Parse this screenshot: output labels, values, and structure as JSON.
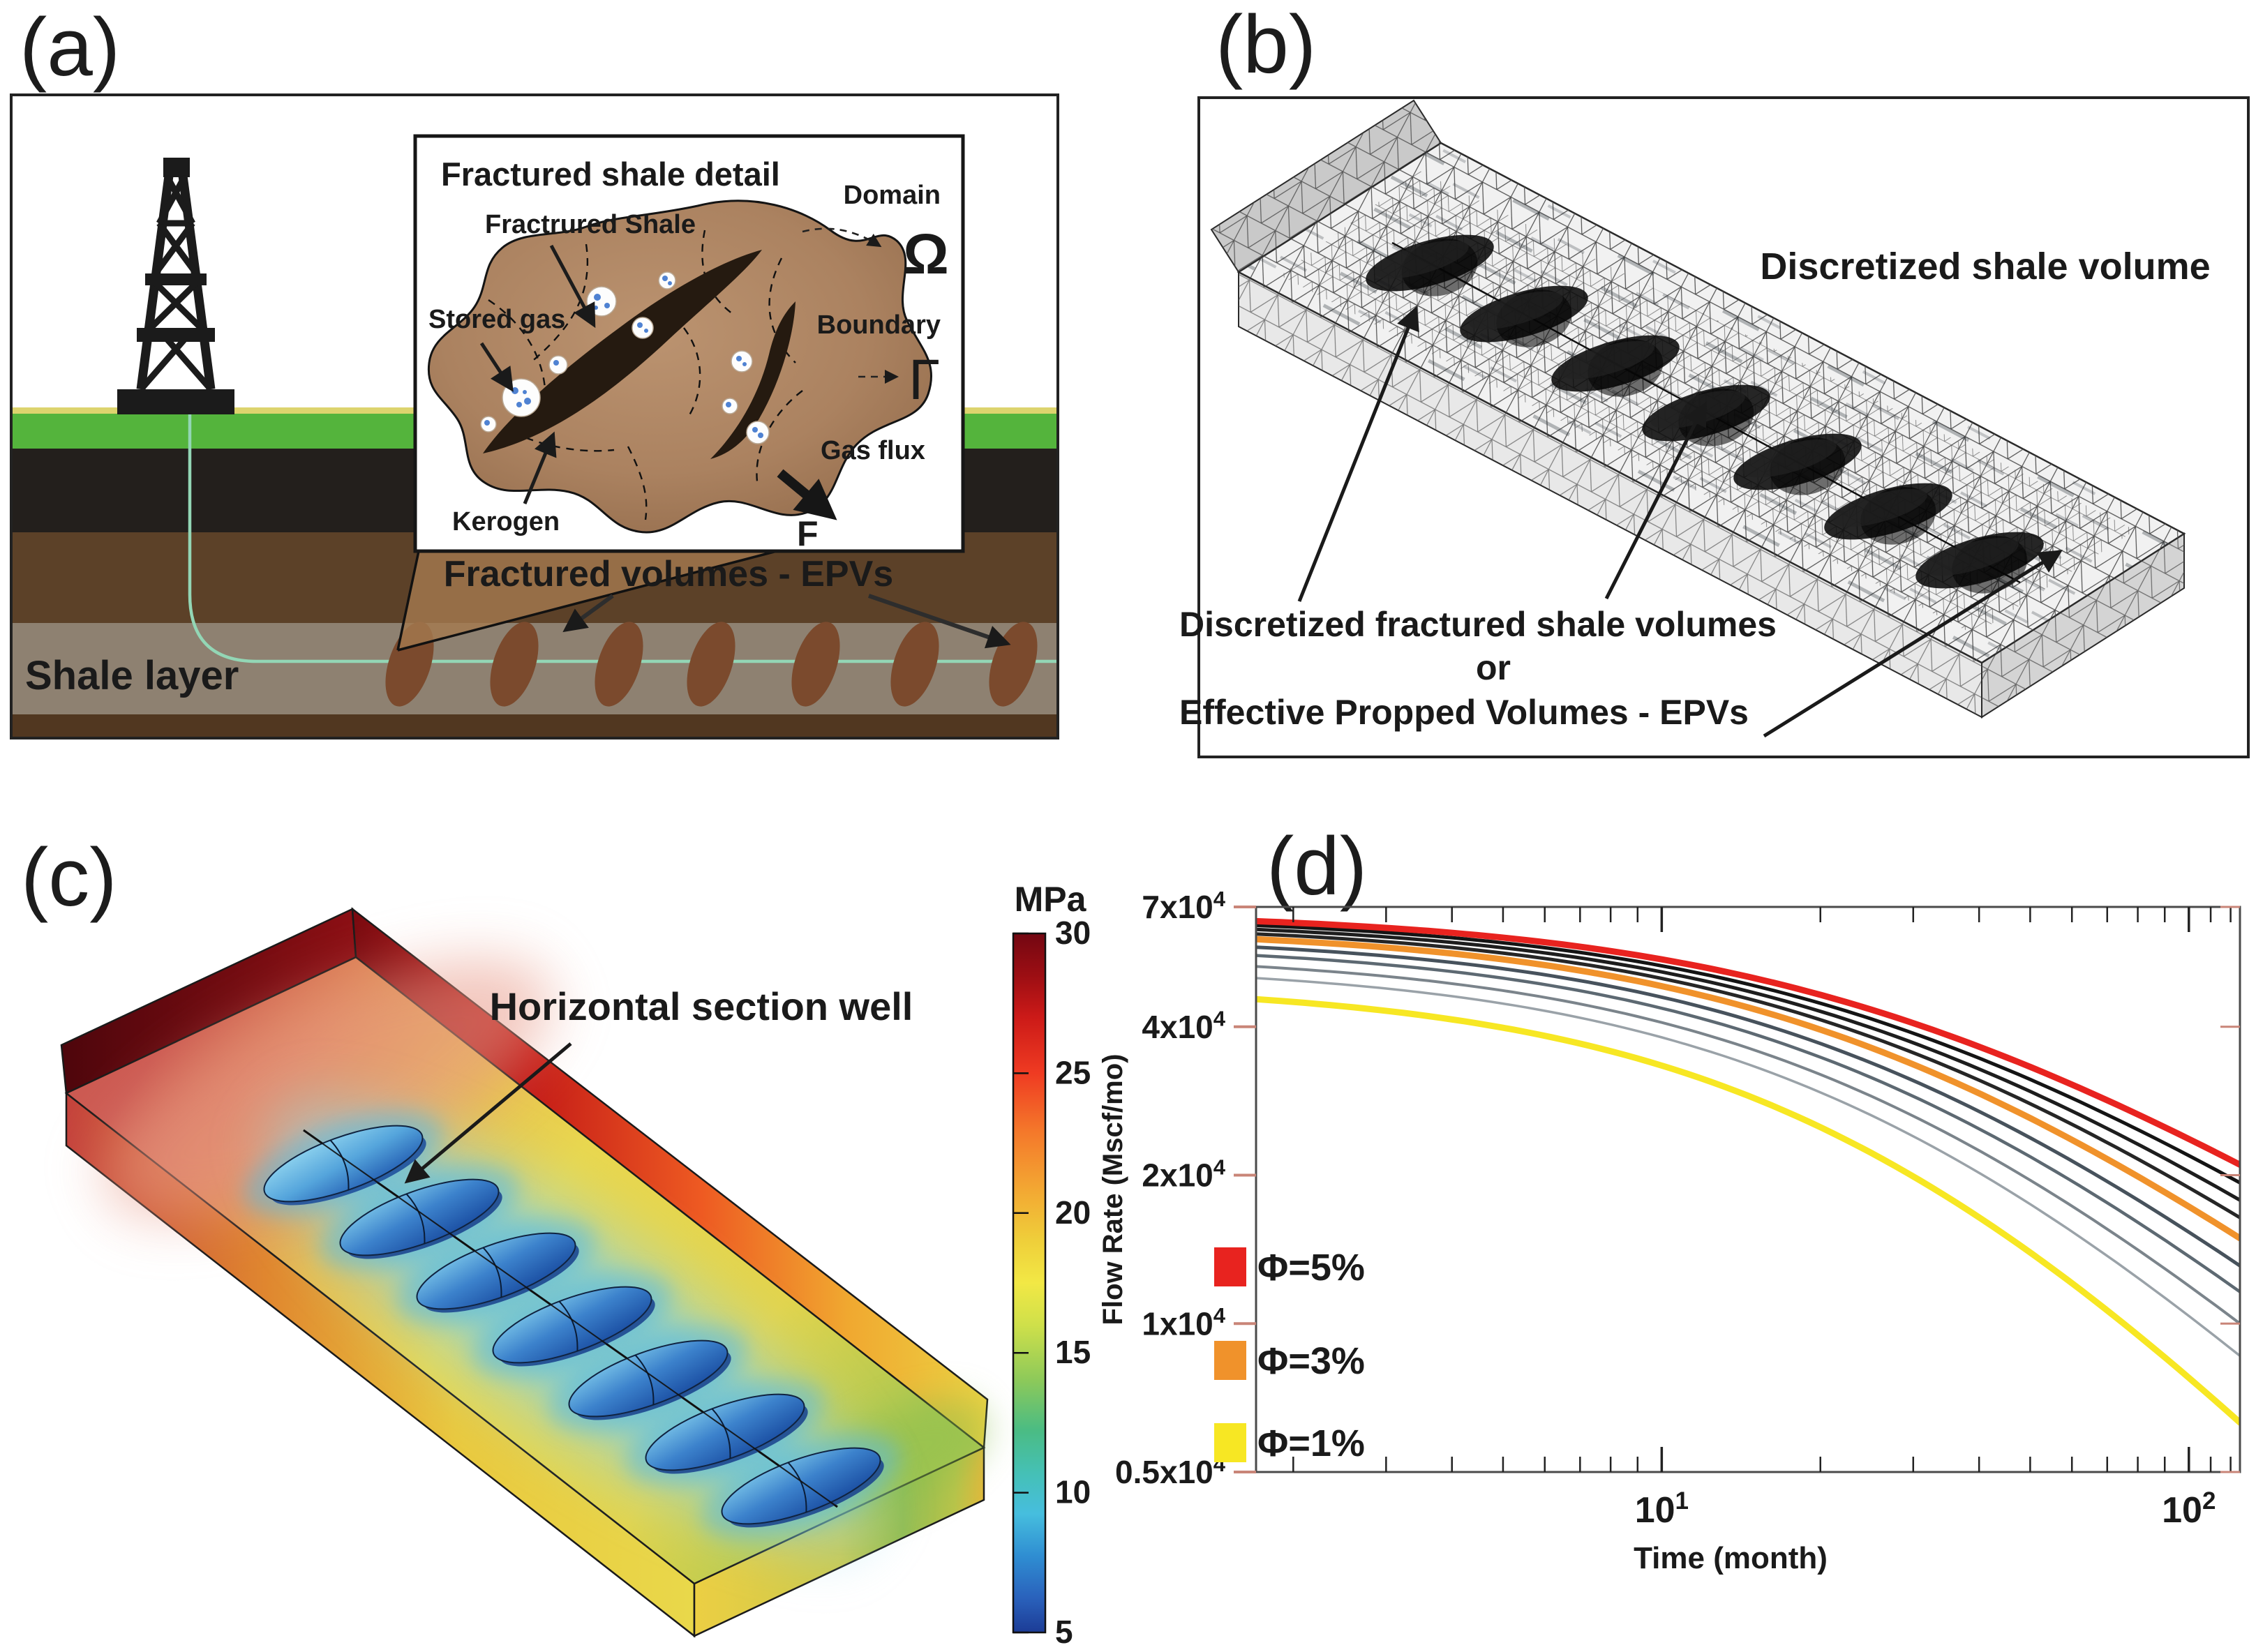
{
  "figure": {
    "panels": {
      "a": {
        "label": "(a)",
        "shale_layer_label": "Shale layer",
        "epv_label": "Fractured volumes - EPVs",
        "inset": {
          "title": "Fractured shale detail",
          "fractured_shale_label": "Fractrured Shale",
          "stored_gas_label": "Stored gas",
          "kerogen_label": "Kerogen",
          "domain_label": "Domain",
          "domain_symbol": "Ω",
          "boundary_label": "Boundary",
          "boundary_symbol": "Γ",
          "gas_flux_label": "Gas flux",
          "gas_flux_symbol": "F"
        }
      },
      "b": {
        "label": "(b)",
        "volume_label": "Discretized shale volume",
        "bottom_caption": [
          "Discretized fractured shale volumes",
          "or",
          "Effective Propped Volumes - EPVs"
        ]
      },
      "c": {
        "label": "(c)",
        "well_label": "Horizontal section well",
        "colorbar": {
          "unit": "MPa",
          "tick_labels": [
            "30",
            "25",
            "20",
            "15",
            "10",
            "5"
          ],
          "max": 30,
          "min": 5
        }
      },
      "d": {
        "label": "(d)"
      }
    }
  },
  "chart_data": {
    "type": "line",
    "x_scale": "log",
    "y_scale": "log",
    "xlabel": "Time (month)",
    "ylabel": "Flow Rate (Mscf/mo)",
    "xlim": [
      1.7,
      125
    ],
    "ylim": [
      5000,
      70000
    ],
    "x_tick_values": [
      10,
      100
    ],
    "x_tick_labels": [
      "10^1",
      "10^2"
    ],
    "x_minor_ticks": [
      2,
      3,
      4,
      5,
      6,
      7,
      8,
      9,
      20,
      30,
      40,
      50,
      60,
      70,
      80,
      90,
      110,
      120
    ],
    "y_tick_values": [
      70000,
      40000,
      20000,
      10000,
      5000
    ],
    "y_tick_labels": [
      "7x10^4",
      "4x10^4",
      "2x10^4",
      "1x10^4",
      "0.5x10^4"
    ],
    "grid": false,
    "legend_position": "lower-left",
    "legend": [
      {
        "label": "Φ=5%",
        "color": "#e8231f"
      },
      {
        "label": "Φ=3%",
        "color": "#f0922b"
      },
      {
        "label": "Φ=1%",
        "color": "#f7e723"
      }
    ],
    "decline_model": "q(t) = q0*(1+t/25)^(-b); q_start at t=1.7 month, q_end at t=125 month (Mscf/mo)",
    "series": [
      {
        "name": "porosity-5pct",
        "color": "#e8231f",
        "width": 9,
        "q_start": 65500,
        "q_end": 21000
      },
      {
        "name": "black-1",
        "color": "#141414",
        "width": 5,
        "q_start": 64200,
        "q_end": 19300
      },
      {
        "name": "black-2",
        "color": "#1d1d1d",
        "width": 5,
        "q_start": 63000,
        "q_end": 17800
      },
      {
        "name": "black-3",
        "color": "#262626",
        "width": 5,
        "q_start": 61700,
        "q_end": 16400
      },
      {
        "name": "porosity-3pct",
        "color": "#f0922b",
        "width": 9,
        "q_start": 60200,
        "q_end": 14900
      },
      {
        "name": "gray-1",
        "color": "#47525c",
        "width": 5,
        "q_start": 58000,
        "q_end": 13100
      },
      {
        "name": "gray-2",
        "color": "#5d6972",
        "width": 4.5,
        "q_start": 55800,
        "q_end": 11600
      },
      {
        "name": "gray-3",
        "color": "#7b848b",
        "width": 4,
        "q_start": 53000,
        "q_end": 10000
      },
      {
        "name": "gray-4",
        "color": "#9aa2a8",
        "width": 3.5,
        "q_start": 50200,
        "q_end": 8600
      },
      {
        "name": "porosity-1pct",
        "color": "#f7e723",
        "width": 9,
        "q_start": 45500,
        "q_end": 6300
      }
    ]
  }
}
